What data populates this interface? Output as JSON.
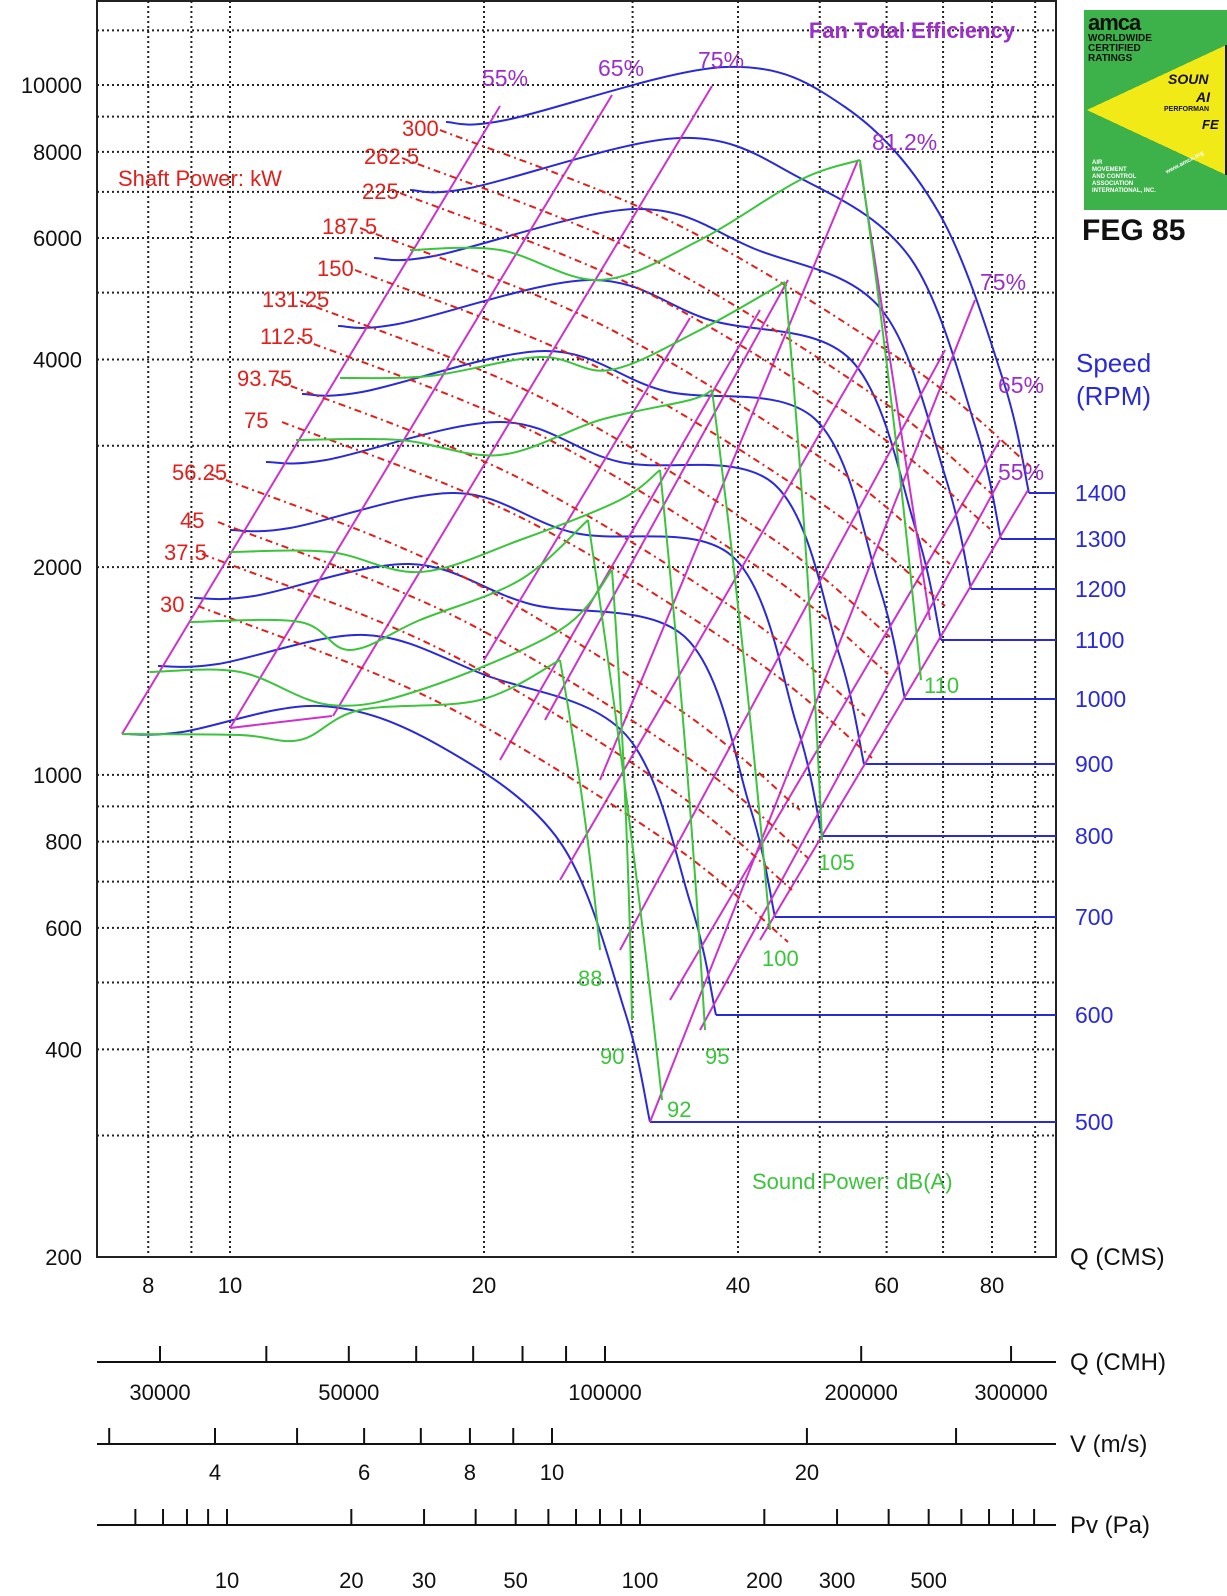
{
  "chart_data": {
    "type": "line",
    "title": "Fan Total Efficiency",
    "yaxis": {
      "scale": "log",
      "ylim": [
        200,
        13000
      ],
      "ticks": [
        200,
        400,
        600,
        800,
        1000,
        2000,
        4000,
        6000,
        8000,
        10000
      ],
      "minor_ticks": [
        300,
        500,
        700,
        900,
        3000,
        5000,
        7000,
        9000
      ]
    },
    "xaxes": [
      {
        "label": "Q (CMS)",
        "scale": "log",
        "ticks": [
          8,
          10,
          20,
          40,
          60,
          80
        ],
        "minor_ticks": [
          9,
          30,
          50,
          70,
          90
        ]
      },
      {
        "label": "Q (CMH)",
        "scale": "log",
        "ticks": [
          30000,
          50000,
          100000,
          200000,
          300000
        ],
        "minor_ticks": [
          40000,
          60000,
          70000,
          80000,
          90000
        ]
      },
      {
        "label": "V (m/s)",
        "scale": "log",
        "ticks": [
          4,
          6,
          8,
          10,
          20
        ],
        "minor_ticks": [
          3,
          5,
          7,
          9,
          30
        ]
      },
      {
        "label": "Pv (Pa)",
        "scale": "log",
        "ticks": [
          10,
          20,
          30,
          50,
          100,
          200,
          300,
          500
        ],
        "minor_ticks": [
          6,
          7,
          8,
          9,
          40,
          60,
          70,
          80,
          90,
          400,
          600,
          700,
          800,
          900
        ]
      }
    ],
    "annotations": {
      "shaft_power_label": "Shaft Power: kW",
      "sound_power_label": "Sound Power: dB(A)",
      "speed_label_1": "Speed",
      "speed_label_2": "(RPM)"
    },
    "speed_rpm": [
      500,
      600,
      700,
      800,
      900,
      1000,
      1100,
      1200,
      1300,
      1400
    ],
    "shaft_power_kw": [
      "30",
      "37.5",
      "45",
      "56.25",
      "75",
      "93.75",
      "112.5",
      "131.25",
      "150",
      "187.5",
      "225",
      "262.5",
      "300"
    ],
    "efficiency_labels": [
      "55%",
      "65%",
      "75%",
      "81.2%",
      "75%",
      "65%",
      "55%"
    ],
    "sound_power_dba": [
      "88",
      "90",
      "92",
      "95",
      "100",
      "105",
      "110"
    ],
    "colors": {
      "speed": "#2a2ad6",
      "efficiency": "#cc33cc",
      "power": "#e0201c",
      "sound": "#3cc43c",
      "title": "#9a30c8"
    }
  },
  "badge": {
    "brand": "amca",
    "line1": "WORLDWIDE",
    "line2": "CERTIFIED",
    "line3": "RATINGS",
    "sound": "SOUN",
    "air": "AI",
    "perf": "PERFORMAN",
    "fe": "FE",
    "org1": "AIR",
    "org2": "MOVEMENT",
    "org3": "AND CONTROL",
    "org4": "ASSOCIATION",
    "org5": "INTERNATIONAL, INC.",
    "url": "www.amca.org",
    "feg": "FEG 85"
  }
}
